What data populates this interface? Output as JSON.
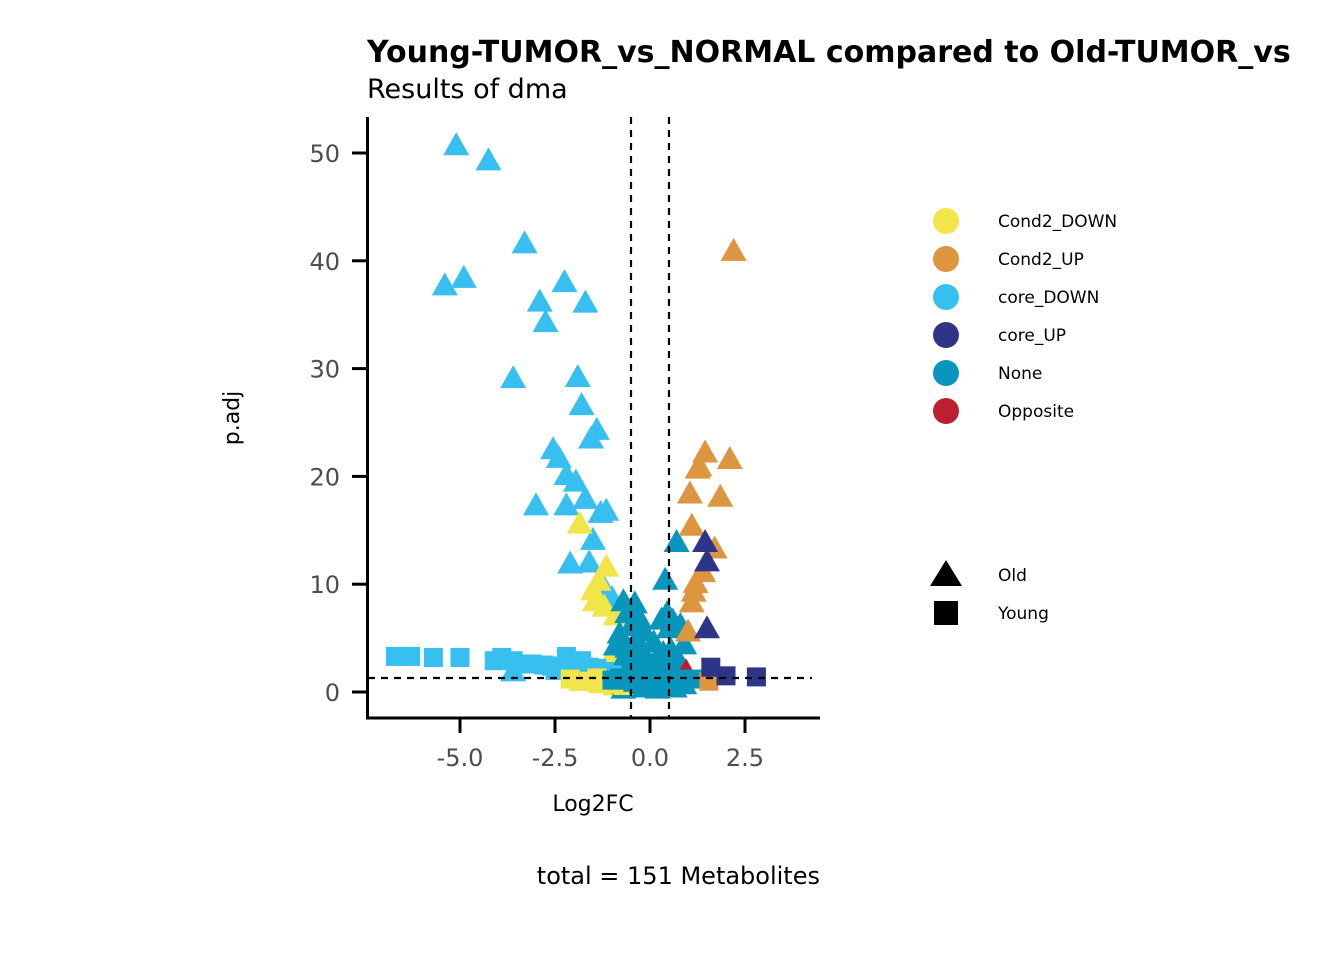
{
  "chart_data": {
    "type": "scatter",
    "title": "Young-TUMOR_vs_NORMAL compared to Old-TUMOR_vs",
    "subtitle": "Results of dma",
    "xlabel": "Log2FC",
    "ylabel": "p.adj",
    "caption": "total = 151 Metabolites",
    "xlim": [
      -7.5,
      4.5
    ],
    "ylim": [
      -2.5,
      53.5
    ],
    "x_ticks": [
      -5.0,
      -2.5,
      0.0,
      2.5
    ],
    "x_tick_labels": [
      "-5.0",
      "-2.5",
      "0.0",
      "2.5"
    ],
    "y_ticks": [
      0,
      10,
      20,
      30,
      40,
      50
    ],
    "y_tick_labels": [
      "0",
      "10",
      "20",
      "30",
      "40",
      "50"
    ],
    "vlines": [
      -0.5,
      0.5
    ],
    "hline": 1.3,
    "grid": false,
    "legend_position": "right",
    "color_legend": [
      {
        "label": "Cond2_DOWN",
        "color": "#F1E54A"
      },
      {
        "label": "Cond2_UP",
        "color": "#DD9540"
      },
      {
        "label": "core_DOWN",
        "color": "#36BFEF"
      },
      {
        "label": "core_UP",
        "color": "#2E3589"
      },
      {
        "label": "None",
        "color": "#0996BC"
      },
      {
        "label": "Opposite",
        "color": "#BC1F30"
      }
    ],
    "shape_legend": [
      {
        "label": "Old",
        "shape": "triangle"
      },
      {
        "label": "Young",
        "shape": "square"
      }
    ],
    "series": [
      {
        "name": "core_DOWN",
        "color": "#36BFEF",
        "shape": "triangle",
        "points": [
          [
            -5.1,
            50.6
          ],
          [
            -4.25,
            49.2
          ],
          [
            -3.3,
            41.5
          ],
          [
            -5.4,
            37.6
          ],
          [
            -4.9,
            38.3
          ],
          [
            -2.25,
            37.9
          ],
          [
            -2.9,
            36.1
          ],
          [
            -1.7,
            36.0
          ],
          [
            -2.75,
            34.2
          ],
          [
            -3.6,
            29.0
          ],
          [
            -1.9,
            29.1
          ],
          [
            -1.8,
            26.5
          ],
          [
            -1.4,
            24.2
          ],
          [
            -1.55,
            23.4
          ],
          [
            -2.55,
            22.4
          ],
          [
            -2.4,
            21.6
          ],
          [
            -2.2,
            20.0
          ],
          [
            -1.95,
            19.4
          ],
          [
            -1.7,
            17.8
          ],
          [
            -2.2,
            17.2
          ],
          [
            -3.0,
            17.2
          ],
          [
            -1.15,
            16.7
          ],
          [
            -1.3,
            16.5
          ],
          [
            -1.5,
            14.0
          ],
          [
            -2.1,
            11.8
          ],
          [
            -1.6,
            11.9
          ],
          [
            -1.2,
            9.5
          ],
          [
            -1.0,
            8.6
          ],
          [
            -1.15,
            8.0
          ],
          [
            -3.6,
            1.8
          ]
        ]
      },
      {
        "name": "Cond2_DOWN",
        "color": "#F1E54A",
        "shape": "triangle",
        "points": [
          [
            -1.85,
            15.5
          ],
          [
            -1.15,
            11.5
          ],
          [
            -1.35,
            10.2
          ],
          [
            -1.5,
            9.3
          ],
          [
            -1.45,
            8.3
          ],
          [
            -1.2,
            7.8
          ],
          [
            -0.9,
            7.0
          ],
          [
            -0.75,
            4.0
          ],
          [
            -1.0,
            3.2
          ],
          [
            -0.6,
            2.0
          ],
          [
            -1.8,
            0.9
          ],
          [
            -1.3,
            0.7
          ],
          [
            -0.9,
            0.5
          ]
        ]
      },
      {
        "name": "None",
        "color": "#0996BC",
        "shape": "triangle",
        "points": [
          [
            -0.7,
            8.3
          ],
          [
            -0.4,
            8.1
          ],
          [
            -0.6,
            7.2
          ],
          [
            -0.3,
            6.8
          ],
          [
            -0.5,
            6.0
          ],
          [
            -0.8,
            5.3
          ],
          [
            -0.15,
            5.5
          ],
          [
            -0.35,
            4.8
          ],
          [
            -0.9,
            4.2
          ],
          [
            -0.6,
            4.0
          ],
          [
            -0.25,
            3.9
          ],
          [
            -0.45,
            3.3
          ],
          [
            -0.1,
            3.1
          ],
          [
            -0.7,
            2.9
          ],
          [
            -0.3,
            2.5
          ],
          [
            -0.55,
            2.0
          ],
          [
            -0.15,
            1.8
          ],
          [
            -0.8,
            1.5
          ],
          [
            -0.4,
            1.3
          ],
          [
            -0.05,
            1.2
          ],
          [
            -0.6,
            0.9
          ],
          [
            -0.25,
            0.7
          ],
          [
            -0.45,
            0.4
          ],
          [
            -0.1,
            0.3
          ],
          [
            -0.7,
            0.2
          ],
          [
            0.1,
            4.5
          ],
          [
            0.2,
            3.2
          ],
          [
            0.05,
            2.2
          ],
          [
            0.3,
            1.6
          ],
          [
            0.15,
            0.9
          ],
          [
            0.25,
            0.4
          ],
          [
            0.35,
            2.7
          ],
          [
            0.45,
            1.1
          ],
          [
            0.0,
            0.6
          ],
          [
            0.2,
            0.2
          ],
          [
            0.7,
            13.8
          ],
          [
            0.4,
            10.3
          ],
          [
            0.3,
            6.6
          ],
          [
            0.45,
            7.2
          ],
          [
            0.6,
            6.5
          ],
          [
            0.5,
            5.8
          ],
          [
            0.8,
            6.1
          ],
          [
            0.9,
            4.3
          ],
          [
            0.55,
            3.8
          ],
          [
            0.7,
            3.0
          ],
          [
            0.35,
            3.5
          ],
          [
            0.85,
            2.2
          ],
          [
            0.6,
            1.9
          ],
          [
            0.95,
            1.5
          ],
          [
            0.4,
            1.9
          ],
          [
            0.75,
            0.9
          ],
          [
            0.5,
            0.5
          ],
          [
            0.9,
            0.6
          ],
          [
            0.65,
            0.3
          ]
        ]
      },
      {
        "name": "Cond2_UP",
        "color": "#DD9540",
        "shape": "triangle",
        "points": [
          [
            2.2,
            40.8
          ],
          [
            1.45,
            22.1
          ],
          [
            2.1,
            21.5
          ],
          [
            1.25,
            20.6
          ],
          [
            1.3,
            20.8
          ],
          [
            1.05,
            18.3
          ],
          [
            1.85,
            18.0
          ],
          [
            1.1,
            15.3
          ],
          [
            1.7,
            13.2
          ],
          [
            1.4,
            11.0
          ],
          [
            1.2,
            10.0
          ],
          [
            1.15,
            9.2
          ],
          [
            1.1,
            8.2
          ],
          [
            1.0,
            5.5
          ]
        ]
      },
      {
        "name": "core_UP",
        "color": "#2E3589",
        "shape": "triangle",
        "points": [
          [
            1.45,
            13.8
          ],
          [
            1.5,
            12.0
          ],
          [
            1.5,
            5.8
          ]
        ]
      },
      {
        "name": "Opposite",
        "color": "#BC1F30",
        "shape": "triangle",
        "points": [
          [
            0.95,
            1.8
          ]
        ]
      },
      {
        "name": "core_DOWN",
        "color": "#36BFEF",
        "shape": "square",
        "points": [
          [
            -6.7,
            3.3
          ],
          [
            -6.3,
            3.3
          ],
          [
            -5.7,
            3.2
          ],
          [
            -5.0,
            3.2
          ],
          [
            -4.1,
            2.9
          ],
          [
            -3.9,
            3.2
          ],
          [
            -3.6,
            2.9
          ],
          [
            -3.4,
            2.6
          ],
          [
            -3.1,
            2.6
          ],
          [
            -2.8,
            2.5
          ],
          [
            -2.6,
            2.4
          ],
          [
            -2.3,
            2.4
          ],
          [
            -2.1,
            2.3
          ],
          [
            -1.9,
            2.4
          ],
          [
            -1.6,
            2.3
          ],
          [
            -1.4,
            2.2
          ],
          [
            -2.5,
            2.0
          ],
          [
            -1.2,
            1.9
          ],
          [
            -2.0,
            1.8
          ],
          [
            -1.7,
            1.7
          ],
          [
            -1.0,
            1.6
          ],
          [
            -2.2,
            3.3
          ],
          [
            -1.8,
            2.9
          ]
        ]
      },
      {
        "name": "Cond2_DOWN",
        "color": "#F1E54A",
        "shape": "square",
        "points": [
          [
            -2.1,
            1.2
          ],
          [
            -1.6,
            1.0
          ],
          [
            -1.2,
            0.9
          ],
          [
            -0.9,
            0.8
          ],
          [
            -0.7,
            0.6
          ],
          [
            -1.4,
            1.3
          ]
        ]
      },
      {
        "name": "None",
        "color": "#0996BC",
        "shape": "square",
        "points": [
          [
            -0.6,
            1.1
          ],
          [
            -0.45,
            0.9
          ],
          [
            -0.3,
            0.7
          ],
          [
            -0.15,
            0.5
          ],
          [
            0.0,
            0.4
          ],
          [
            0.15,
            0.6
          ],
          [
            0.3,
            0.8
          ],
          [
            0.45,
            0.9
          ],
          [
            0.6,
            1.0
          ],
          [
            -0.8,
            1.3
          ],
          [
            -1.0,
            1.1
          ],
          [
            0.8,
            1.2
          ],
          [
            -0.2,
            1.4
          ],
          [
            0.2,
            1.2
          ],
          [
            1.3,
            1.2
          ]
        ]
      },
      {
        "name": "Cond2_UP",
        "color": "#DD9540",
        "shape": "square",
        "points": [
          [
            1.55,
            1.0
          ]
        ]
      },
      {
        "name": "core_UP",
        "color": "#2E3589",
        "shape": "square",
        "points": [
          [
            1.6,
            2.3
          ],
          [
            2.0,
            1.5
          ],
          [
            2.8,
            1.4
          ]
        ]
      }
    ]
  }
}
